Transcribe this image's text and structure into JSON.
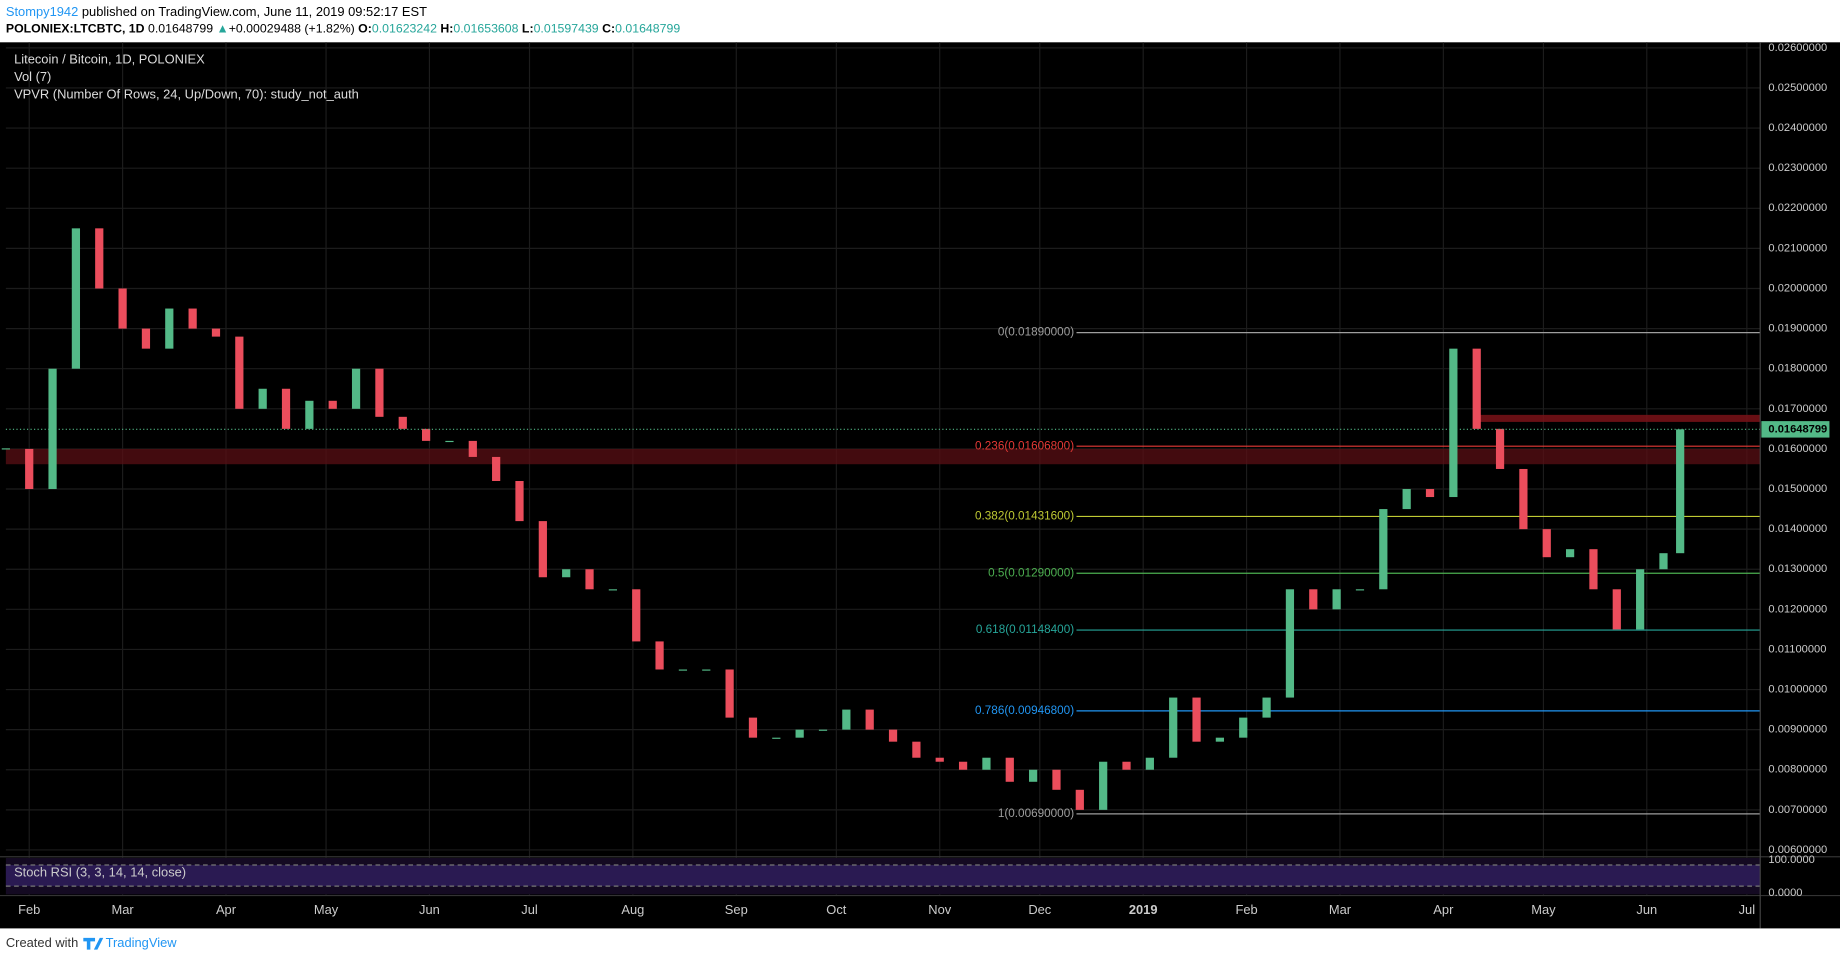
{
  "header": {
    "author": "Stompy1942",
    "published": "published on TradingView.com, June 11, 2019 09:52:17 EST",
    "symbol": "POLONIEX:LTCBTC, 1D",
    "last": "0.01648799",
    "arrow": "▲",
    "change": "+0.00029488 (+1.82%)",
    "ohlc": [
      {
        "key": "O:",
        "value": "0.01623242"
      },
      {
        "key": "H:",
        "value": "0.01653608"
      },
      {
        "key": "L:",
        "value": "0.01597439"
      },
      {
        "key": "C:",
        "value": "0.01648799"
      }
    ]
  },
  "legend": [
    "Litecoin / Bitcoin, 1D, POLONIEX",
    "Vol (7)",
    "VPVR (Number Of Rows, 24, Up/Down, 70): study_not_auth"
  ],
  "chart_data": {
    "type": "candlestick",
    "x": [
      "2018-01-25",
      "2018-02-01",
      "2018-02-08",
      "2018-02-15",
      "2018-02-22",
      "2018-03-01",
      "2018-03-08",
      "2018-03-15",
      "2018-03-22",
      "2018-03-29",
      "2018-04-05",
      "2018-04-12",
      "2018-04-19",
      "2018-04-26",
      "2018-05-03",
      "2018-05-10",
      "2018-05-17",
      "2018-05-24",
      "2018-05-31",
      "2018-06-07",
      "2018-06-14",
      "2018-06-21",
      "2018-06-28",
      "2018-07-05",
      "2018-07-12",
      "2018-07-19",
      "2018-07-26",
      "2018-08-02",
      "2018-08-09",
      "2018-08-16",
      "2018-08-23",
      "2018-08-30",
      "2018-09-06",
      "2018-09-13",
      "2018-09-20",
      "2018-09-27",
      "2018-10-04",
      "2018-10-11",
      "2018-10-18",
      "2018-10-25",
      "2018-11-01",
      "2018-11-08",
      "2018-11-15",
      "2018-11-22",
      "2018-11-29",
      "2018-12-06",
      "2018-12-13",
      "2018-12-20",
      "2018-12-27",
      "2019-01-03",
      "2019-01-10",
      "2019-01-17",
      "2019-01-24",
      "2019-01-31",
      "2019-02-07",
      "2019-02-14",
      "2019-02-21",
      "2019-02-28",
      "2019-03-07",
      "2019-03-14",
      "2019-03-21",
      "2019-03-28",
      "2019-04-04",
      "2019-04-11",
      "2019-04-18",
      "2019-04-25",
      "2019-05-02",
      "2019-05-09",
      "2019-05-16",
      "2019-05-23",
      "2019-05-30",
      "2019-06-06",
      "2019-06-11"
    ],
    "series": [
      {
        "name": "Litecoin / Bitcoin",
        "up_color": "#53b987",
        "down_color": "#eb4d5c",
        "values": [
          0.016,
          0.015,
          0.018,
          0.0215,
          0.02,
          0.019,
          0.0185,
          0.0195,
          0.019,
          0.0188,
          0.017,
          0.0175,
          0.0165,
          0.0172,
          0.017,
          0.018,
          0.0168,
          0.0165,
          0.0162,
          0.0162,
          0.0158,
          0.0152,
          0.0142,
          0.0128,
          0.013,
          0.0125,
          0.0125,
          0.0112,
          0.0105,
          0.0105,
          0.0105,
          0.0093,
          0.0088,
          0.0088,
          0.009,
          0.009,
          0.0095,
          0.009,
          0.0087,
          0.0083,
          0.0082,
          0.008,
          0.0083,
          0.0077,
          0.008,
          0.0075,
          0.007,
          0.0082,
          0.008,
          0.0083,
          0.0098,
          0.0087,
          0.0088,
          0.0093,
          0.0098,
          0.0125,
          0.012,
          0.0125,
          0.0125,
          0.0145,
          0.015,
          0.0148,
          0.0185,
          0.0165,
          0.0155,
          0.014,
          0.0133,
          0.0135,
          0.0125,
          0.0115,
          0.013,
          0.0134,
          0.01648799
        ]
      }
    ],
    "last_price": {
      "value": 0.01648799,
      "label": "0.01648799",
      "color": "#53b987"
    },
    "xlim": [
      "2018-01-25",
      "2019-07-05"
    ],
    "xticks": [
      {
        "value": "2018-02-01",
        "label": "Feb"
      },
      {
        "value": "2018-03-01",
        "label": "Mar"
      },
      {
        "value": "2018-04-01",
        "label": "Apr"
      },
      {
        "value": "2018-05-01",
        "label": "May"
      },
      {
        "value": "2018-06-01",
        "label": "Jun"
      },
      {
        "value": "2018-07-01",
        "label": "Jul"
      },
      {
        "value": "2018-08-01",
        "label": "Aug"
      },
      {
        "value": "2018-09-01",
        "label": "Sep"
      },
      {
        "value": "2018-10-01",
        "label": "Oct"
      },
      {
        "value": "2018-11-01",
        "label": "Nov"
      },
      {
        "value": "2018-12-01",
        "label": "Dec"
      },
      {
        "value": "2019-01-01",
        "label": "2019"
      },
      {
        "value": "2019-02-01",
        "label": "Feb"
      },
      {
        "value": "2019-03-01",
        "label": "Mar"
      },
      {
        "value": "2019-04-01",
        "label": "Apr"
      },
      {
        "value": "2019-05-01",
        "label": "May"
      },
      {
        "value": "2019-06-01",
        "label": "Jun"
      },
      {
        "value": "2019-07-01",
        "label": "Jul"
      }
    ],
    "ylim": [
      0.00586,
      0.02608
    ],
    "yticks": [
      {
        "value": 0.006,
        "label": "0.00600000"
      },
      {
        "value": 0.007,
        "label": "0.00700000"
      },
      {
        "value": 0.008,
        "label": "0.00800000"
      },
      {
        "value": 0.009,
        "label": "0.00900000"
      },
      {
        "value": 0.01,
        "label": "0.01000000"
      },
      {
        "value": 0.011,
        "label": "0.01100000"
      },
      {
        "value": 0.012,
        "label": "0.01200000"
      },
      {
        "value": 0.013,
        "label": "0.01300000"
      },
      {
        "value": 0.014,
        "label": "0.01400000"
      },
      {
        "value": 0.015,
        "label": "0.01500000"
      },
      {
        "value": 0.016,
        "label": "0.01600000"
      },
      {
        "value": 0.017,
        "label": "0.01700000"
      },
      {
        "value": 0.018,
        "label": "0.01800000"
      },
      {
        "value": 0.019,
        "label": "0.01900000"
      },
      {
        "value": 0.02,
        "label": "0.02000000"
      },
      {
        "value": 0.021,
        "label": "0.02100000"
      },
      {
        "value": 0.022,
        "label": "0.02200000"
      },
      {
        "value": 0.023,
        "label": "0.02300000"
      },
      {
        "value": 0.024,
        "label": "0.02400000"
      },
      {
        "value": 0.025,
        "label": "0.02500000"
      },
      {
        "value": 0.026,
        "label": "0.02600000"
      }
    ],
    "grid": true,
    "fib_start": "2018-12-12",
    "fib": [
      {
        "label": "0(0.01890000)",
        "value": 0.0189,
        "color": "#9e9e9e"
      },
      {
        "label": "0.236(0.01606800)",
        "value": 0.016068,
        "color": "#e53935"
      },
      {
        "label": "0.382(0.01431600)",
        "value": 0.014316,
        "color": "#c0ca33"
      },
      {
        "label": "0.5(0.01290000)",
        "value": 0.0129,
        "color": "#4caf50"
      },
      {
        "label": "0.618(0.01148400)",
        "value": 0.011484,
        "color": "#26a69a"
      },
      {
        "label": "0.786(0.00946800)",
        "value": 0.009468,
        "color": "#2196f3"
      },
      {
        "label": "1(0.00690000)",
        "value": 0.0069,
        "color": "#9e9e9e"
      }
    ],
    "stoch": {
      "title": "Stoch RSI (3, 3, 14, 14, close)",
      "ylim": [
        0,
        100
      ],
      "yticks": [
        {
          "value": 100,
          "label": "100.0000"
        },
        {
          "value": 0,
          "label": "0.0000"
        }
      ]
    }
  },
  "footer": {
    "created": "Created with",
    "brand": "TradingView"
  }
}
